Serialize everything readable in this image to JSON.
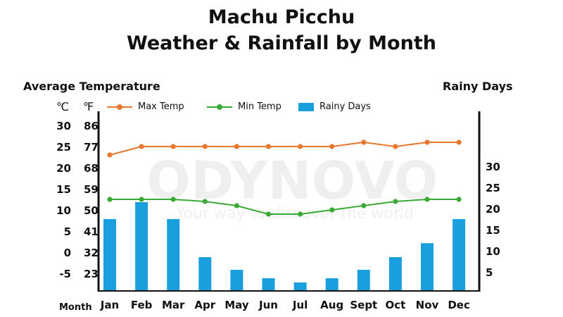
{
  "title_line1": "Machu Picchu",
  "title_line2": "Weather & Rainfall by Month",
  "left_axis_title": "Average Temperature",
  "right_axis_title": "Rainy Days",
  "unit_c": "℃",
  "unit_f": "℉",
  "month_label": "Month",
  "watermark": {
    "brand": "ODYNOVO",
    "tagline": "Your way to discover the world"
  },
  "colors": {
    "max_temp": "#e8772e",
    "min_temp": "#3aaa35",
    "rainy_days": "#1a9fde"
  },
  "chart_data": {
    "type": "bar+line",
    "categories": [
      "Jan",
      "Feb",
      "Mar",
      "Apr",
      "May",
      "Jun",
      "Jul",
      "Aug",
      "Sept",
      "Oct",
      "Nov",
      "Dec"
    ],
    "series": [
      {
        "name": "Max Temp",
        "type": "line",
        "axis": "left",
        "values": [
          23,
          25,
          25,
          25,
          25,
          25,
          25,
          25,
          26,
          25,
          26,
          26
        ]
      },
      {
        "name": "Min Temp",
        "type": "line",
        "axis": "left",
        "values": [
          12.5,
          12.5,
          12.5,
          12,
          11,
          9,
          9,
          10,
          11,
          12,
          12.5,
          12.5
        ]
      },
      {
        "name": "Rainy Days",
        "type": "bar",
        "axis": "right",
        "values": [
          17.5,
          21.5,
          17.5,
          8.5,
          5.5,
          3.5,
          2.5,
          3.5,
          5.5,
          8.5,
          11.8,
          17.5
        ]
      }
    ],
    "left_axis_celsius_ticks": [
      "30",
      "25",
      "20",
      "15",
      "10",
      "5",
      "0",
      "-5"
    ],
    "left_axis_fahrenheit_ticks": [
      "86",
      "77",
      "68",
      "59",
      "50",
      "41",
      "32",
      "23"
    ],
    "left_ylim_celsius": [
      -10,
      31
    ],
    "right_axis_ticks": [
      "30",
      "25",
      "20",
      "15",
      "10",
      "5"
    ],
    "right_ylim": [
      0,
      41
    ]
  }
}
